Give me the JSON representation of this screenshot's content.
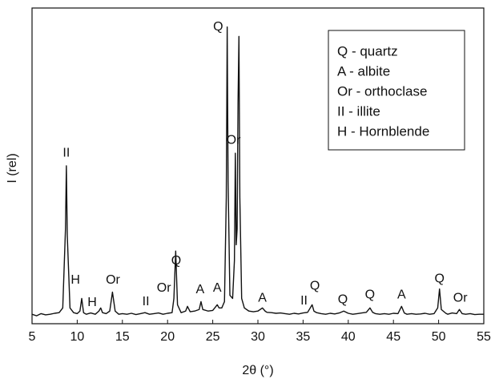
{
  "chart_data": {
    "type": "line",
    "x_label": "2θ (°)",
    "y_label": "I (rel)",
    "xlim": [
      5,
      55
    ],
    "xticks": [
      5,
      10,
      15,
      20,
      25,
      30,
      35,
      40,
      45,
      50,
      55
    ],
    "ylim": [
      0,
      100
    ],
    "color": "#111111",
    "legend": [
      "Q - quartz",
      "A - albite",
      "Or - orthoclase",
      "II - illite",
      "H - Hornblende"
    ],
    "x": [
      5,
      5.5,
      6,
      6.5,
      7,
      7.5,
      8,
      8.4,
      8.7,
      8.8,
      8.9,
      9.2,
      9.6,
      10,
      10.3,
      10.5,
      10.7,
      11,
      11.5,
      12,
      12.4,
      12.6,
      12.8,
      13.2,
      13.6,
      13.9,
      14.2,
      14.6,
      15,
      15.5,
      16,
      16.5,
      17,
      17.5,
      18,
      18.5,
      19,
      19.5,
      20,
      20.5,
      20.7,
      20.9,
      21.1,
      21.5,
      22,
      22.2,
      22.5,
      23,
      23.5,
      23.7,
      23.9,
      24.5,
      25,
      25.5,
      25.7,
      26,
      26.3,
      26.5,
      26.6,
      26.7,
      26.9,
      27.2,
      27.4,
      27.5,
      27.6,
      27.7,
      27.8,
      27.9,
      28,
      28.2,
      28.5,
      29,
      29.5,
      30,
      30.5,
      30.8,
      31,
      31.5,
      32,
      32.5,
      33,
      33.5,
      34,
      34.5,
      35,
      35.5,
      36,
      36.2,
      36.5,
      37,
      37.5,
      38,
      38.5,
      39,
      39.5,
      40,
      40.5,
      41,
      41.5,
      42,
      42.4,
      42.7,
      43,
      43.5,
      44,
      44.5,
      45,
      45.5,
      45.9,
      46.2,
      46.5,
      47,
      47.5,
      48,
      48.5,
      49,
      49.5,
      49.9,
      50.1,
      50.3,
      50.8,
      51,
      51.5,
      52,
      52.3,
      52.6,
      53,
      53.5,
      54,
      54.5,
      55
    ],
    "values": [
      3,
      2.5,
      3.2,
      2.8,
      3,
      3.3,
      3.5,
      5,
      30,
      50,
      28,
      5,
      3.5,
      3.2,
      4,
      8,
      3.5,
      3,
      3.4,
      3,
      4,
      5,
      3.5,
      3.2,
      4,
      10,
      4,
      3,
      3.2,
      3,
      3.3,
      2.9,
      3.2,
      3.5,
      3,
      3.2,
      3.4,
      3,
      3.3,
      3.5,
      8,
      23,
      6,
      3.5,
      4,
      5.5,
      3.8,
      4,
      4.5,
      7,
      4.5,
      4,
      4.2,
      6,
      5,
      5,
      7,
      40,
      94,
      45,
      9,
      8,
      20,
      54,
      25,
      30,
      70,
      91,
      40,
      8,
      5,
      4,
      3.8,
      4,
      5,
      4,
      3.6,
      3.5,
      3.3,
      3.4,
      3.2,
      3,
      3.3,
      3.1,
      3.4,
      3.6,
      6,
      4,
      3.5,
      3.2,
      3,
      3.3,
      3.1,
      3.4,
      4,
      3.3,
      3,
      3.2,
      3.4,
      3.6,
      5,
      3.6,
      3.2,
      3,
      3.2,
      3,
      3.3,
      3.2,
      5.5,
      3.4,
      3,
      3.2,
      3,
      3.1,
      3.3,
      3,
      3.2,
      5,
      11,
      4.5,
      3.3,
      3,
      3.4,
      3.2,
      4.5,
      3.2,
      3,
      3.2,
      2.9,
      3,
      3
    ],
    "annotations": [
      {
        "label": "Q",
        "x": 25.6,
        "y": 94
      },
      {
        "label": "II",
        "x": 8.8,
        "y": 54
      },
      {
        "label": "H",
        "x": 9.8,
        "y": 13.7
      },
      {
        "label": "H",
        "x": 11.65,
        "y": 6.6
      },
      {
        "label": "Or",
        "x": 13.95,
        "y": 13.7
      },
      {
        "label": "Q",
        "x": 20.96,
        "y": 19.8
      },
      {
        "label": "Or",
        "x": 19.6,
        "y": 11.2
      },
      {
        "label": "II",
        "x": 17.6,
        "y": 6.9
      },
      {
        "label": "A",
        "x": 23.6,
        "y": 10.7
      },
      {
        "label": "A",
        "x": 25.5,
        "y": 11.2
      },
      {
        "label": "Or",
        "x": 27.3,
        "y": 58
      },
      {
        "label": "A",
        "x": 30.5,
        "y": 8.1
      },
      {
        "label": "II",
        "x": 35.1,
        "y": 7.1
      },
      {
        "label": "Q",
        "x": 36.3,
        "y": 11.9
      },
      {
        "label": "Q",
        "x": 39.4,
        "y": 7.6
      },
      {
        "label": "Q",
        "x": 42.4,
        "y": 9.1
      },
      {
        "label": "A",
        "x": 45.9,
        "y": 9.1
      },
      {
        "label": "Q",
        "x": 50.1,
        "y": 14.2
      },
      {
        "label": "Or",
        "x": 52.4,
        "y": 8.1
      }
    ]
  }
}
